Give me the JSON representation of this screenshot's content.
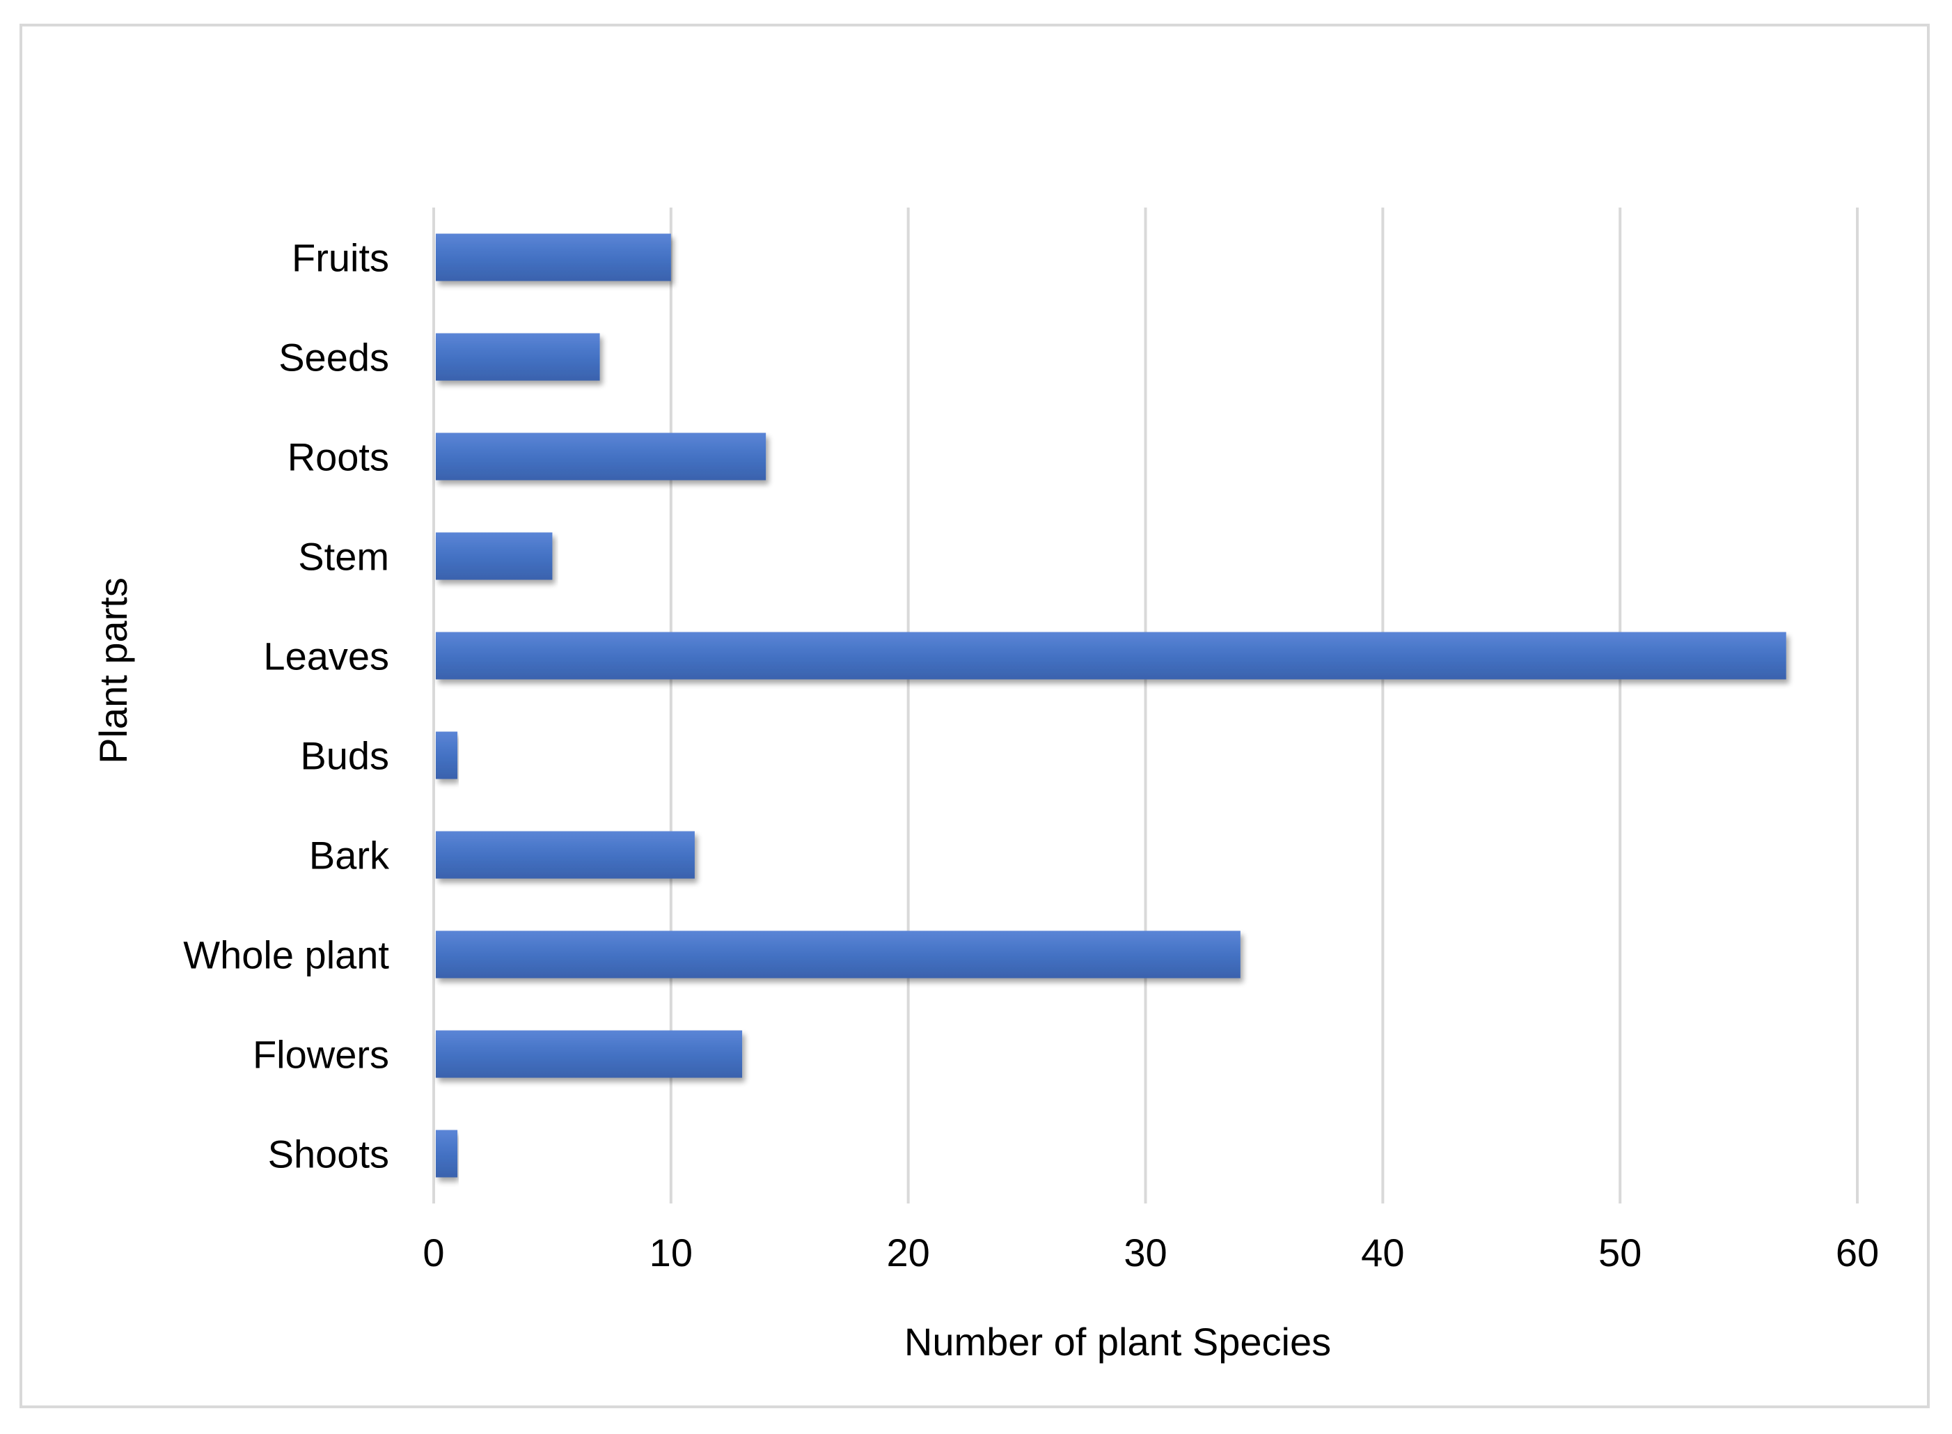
{
  "chart_data": {
    "type": "bar",
    "orientation": "horizontal",
    "title": "",
    "categories": [
      "Fruits",
      "Seeds",
      "Roots",
      "Stem",
      "Leaves",
      "Buds",
      "Bark",
      "Whole plant",
      "Flowers",
      "Shoots"
    ],
    "values": [
      10,
      7,
      14,
      5,
      57,
      1,
      11,
      34,
      13,
      1
    ],
    "xlabel": "Number of plant Species",
    "ylabel": "Plant parts",
    "xlim": [
      0,
      60
    ],
    "xticks": [
      0,
      10,
      20,
      30,
      40,
      50,
      60
    ],
    "grid": "vertical",
    "legend": "none",
    "colors": {
      "bar": "#4472c4",
      "bar_light": "#5b85d6",
      "bar_dark": "#3a62ad",
      "grid": "#d9d9d9",
      "frame": "#d9d9d9"
    }
  }
}
